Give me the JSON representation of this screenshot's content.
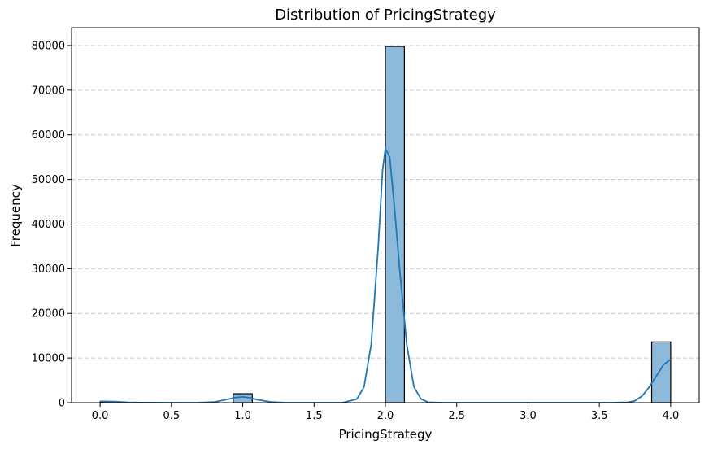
{
  "chart_data": {
    "type": "bar",
    "title": "Distribution of PricingStrategy",
    "xlabel": "PricingStrategy",
    "ylabel": "Frequency",
    "xlim": [
      -0.2,
      4.2
    ],
    "ylim": [
      0,
      84000
    ],
    "x_ticks": [
      0.0,
      0.5,
      1.0,
      1.5,
      2.0,
      2.5,
      3.0,
      3.5,
      4.0
    ],
    "x_tick_labels": [
      "0.0",
      "0.5",
      "1.0",
      "1.5",
      "2.0",
      "2.5",
      "3.0",
      "3.5",
      "4.0"
    ],
    "y_ticks": [
      0,
      10000,
      20000,
      30000,
      40000,
      50000,
      60000,
      70000,
      80000
    ],
    "y_tick_labels": [
      "0",
      "10000",
      "20000",
      "30000",
      "40000",
      "50000",
      "60000",
      "70000",
      "80000"
    ],
    "grid": "y-dashed",
    "bin_width": 0.1333,
    "bins": [
      {
        "x0": 0.0,
        "x1": 0.1333,
        "count": 200
      },
      {
        "x0": 0.9333,
        "x1": 1.0667,
        "count": 2000
      },
      {
        "x0": 2.0,
        "x1": 2.1333,
        "count": 79800
      },
      {
        "x0": 3.8667,
        "x1": 4.0,
        "count": 13600
      }
    ],
    "kde": [
      [
        0.0,
        300
      ],
      [
        0.1,
        250
      ],
      [
        0.2,
        80
      ],
      [
        0.3,
        20
      ],
      [
        0.5,
        0
      ],
      [
        0.7,
        20
      ],
      [
        0.8,
        150
      ],
      [
        0.9,
        800
      ],
      [
        0.95,
        1150
      ],
      [
        1.0,
        1300
      ],
      [
        1.05,
        1100
      ],
      [
        1.1,
        700
      ],
      [
        1.2,
        150
      ],
      [
        1.3,
        0
      ],
      [
        1.7,
        0
      ],
      [
        1.8,
        800
      ],
      [
        1.85,
        3500
      ],
      [
        1.9,
        13000
      ],
      [
        1.95,
        35000
      ],
      [
        1.98,
        52000
      ],
      [
        2.0,
        57000
      ],
      [
        2.03,
        55000
      ],
      [
        2.06,
        45000
      ],
      [
        2.1,
        30000
      ],
      [
        2.15,
        13000
      ],
      [
        2.2,
        3500
      ],
      [
        2.25,
        800
      ],
      [
        2.3,
        100
      ],
      [
        2.4,
        0
      ],
      [
        3.6,
        0
      ],
      [
        3.7,
        100
      ],
      [
        3.75,
        400
      ],
      [
        3.8,
        1500
      ],
      [
        3.85,
        3500
      ],
      [
        3.9,
        6000
      ],
      [
        3.95,
        8500
      ],
      [
        4.0,
        9700
      ]
    ],
    "colors": {
      "bar_fill": "#8db9db",
      "bar_edge": "#000000",
      "kde_line": "#1f77b4",
      "grid": "#c8c8c8"
    }
  }
}
